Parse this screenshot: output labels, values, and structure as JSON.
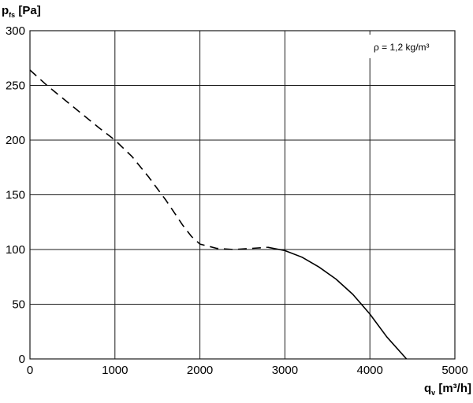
{
  "chart_data": {
    "type": "line",
    "xlabel": {
      "main": "q",
      "sub": "v",
      "unit": " [m³/h]"
    },
    "ylabel": {
      "main": "p",
      "sub": "fs",
      "unit": " [Pa]"
    },
    "annotation": "ρ = 1,2 kg/m³",
    "xlim": [
      0,
      5000
    ],
    "ylim": [
      0,
      300
    ],
    "x_ticks": [
      0,
      1000,
      2000,
      3000,
      4000,
      5000
    ],
    "y_ticks": [
      0,
      50,
      100,
      150,
      200,
      250,
      300
    ],
    "x_tick_labels": [
      "0",
      "1000",
      "2000",
      "3000",
      "4000",
      "5000"
    ],
    "y_tick_labels": [
      "0",
      "50",
      "100",
      "150",
      "200",
      "250",
      "300"
    ],
    "grid": true,
    "series": [
      {
        "style": "dashed",
        "x": [
          0,
          200,
          500,
          800,
          1000,
          1200,
          1400,
          1600,
          1800,
          1900,
          2000,
          2200,
          2400,
          2600,
          2800
        ],
        "y": [
          264,
          250,
          231,
          212,
          200,
          185,
          166,
          145,
          122,
          112,
          105,
          101,
          100,
          101,
          102
        ]
      },
      {
        "style": "solid",
        "x": [
          2800,
          3000,
          3200,
          3400,
          3600,
          3800,
          4000,
          4200,
          4430
        ],
        "y": [
          102,
          99,
          93,
          84,
          73,
          59,
          41,
          20,
          0
        ]
      }
    ]
  }
}
